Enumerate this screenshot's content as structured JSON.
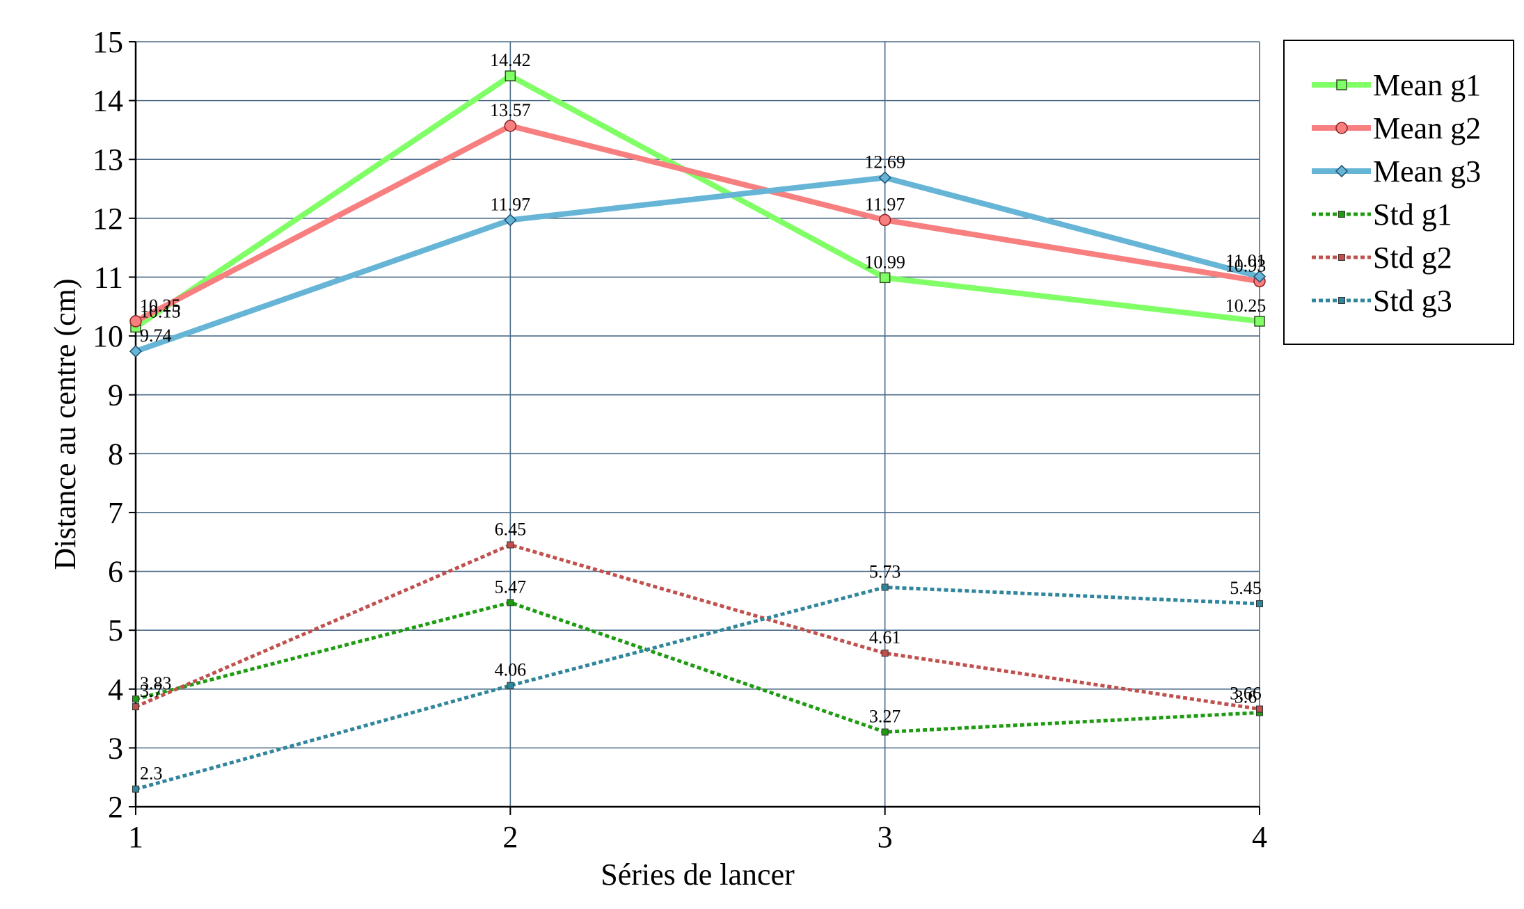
{
  "chart_data": {
    "type": "line",
    "title": "",
    "xlabel": "Séries de lancer",
    "ylabel": "Distance au centre (cm)",
    "x": [
      1,
      2,
      3,
      4
    ],
    "xlim": [
      1,
      4
    ],
    "ylim": [
      2,
      15
    ],
    "y_ticks": [
      2,
      3,
      4,
      5,
      6,
      7,
      8,
      9,
      10,
      11,
      12,
      13,
      14,
      15
    ],
    "grid": true,
    "legend_position": "top-right",
    "series": [
      {
        "name": "Mean g1",
        "values": [
          10.15,
          14.42,
          10.99,
          10.25
        ],
        "labels": [
          "10.15",
          "14.42",
          "10.99",
          "10.25"
        ],
        "color": "#80ff66",
        "style": "solid",
        "marker": "square"
      },
      {
        "name": "Mean g2",
        "values": [
          10.25,
          13.57,
          11.97,
          10.93
        ],
        "labels": [
          "10.25",
          "13.57",
          "11.97",
          "10.93"
        ],
        "color": "#f77f7f",
        "style": "solid",
        "marker": "circle"
      },
      {
        "name": "Mean g3",
        "values": [
          9.74,
          11.97,
          12.69,
          11.01
        ],
        "labels": [
          "9.74",
          "11.97",
          "12.69",
          "11.01"
        ],
        "color": "#66b5d6",
        "style": "solid",
        "marker": "diamond"
      },
      {
        "name": "Std g1",
        "values": [
          3.83,
          5.47,
          3.27,
          3.6
        ],
        "labels": [
          "3.83",
          "5.47",
          "3.27",
          "3.6"
        ],
        "color": "#1f9b12",
        "style": "dotted",
        "marker": "small-square"
      },
      {
        "name": "Std g2",
        "values": [
          3.7,
          6.45,
          4.61,
          3.66
        ],
        "labels": [
          "3.7",
          "6.45",
          "4.61",
          "3.66"
        ],
        "color": "#c0504d",
        "style": "dotted",
        "marker": "small-square"
      },
      {
        "name": "Std g3",
        "values": [
          2.3,
          4.06,
          5.73,
          5.45
        ],
        "labels": [
          "2.3",
          "4.06",
          "5.73",
          "5.45"
        ],
        "color": "#31859c",
        "style": "dotted",
        "marker": "small-square"
      }
    ]
  }
}
